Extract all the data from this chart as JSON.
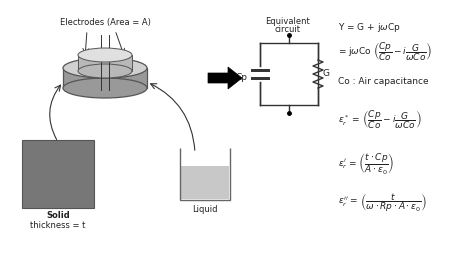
{
  "bg_color": "#ffffff",
  "text_color": "#222222",
  "electrode_label": "Electrodes (Area = A)",
  "solid_label1": "Solid",
  "solid_label2": "thickness = t",
  "liquid_label": "Liquid",
  "circuit_label1": "Equivalent",
  "circuit_label2": "circuit",
  "cp_label": "Cp",
  "g_label": "G",
  "co_label": "Co : Air capacitance",
  "cylinder_top_color": "#d0d0d0",
  "cylinder_body_color": "#999999",
  "cylinder_edge_color": "#555555",
  "solid_color": "#777777",
  "liquid_color": "#c8c8c8",
  "container_edge": "#666666",
  "arrow_color": "#111111",
  "line_color": "#333333"
}
